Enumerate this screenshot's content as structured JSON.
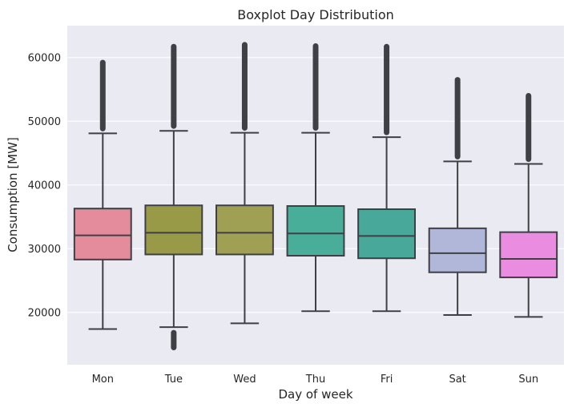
{
  "chart_data": {
    "type": "boxplot",
    "title": "Boxplot Day Distribution",
    "xlabel": "Day of week",
    "ylabel": "Consumption [MW]",
    "ylim": [
      11800,
      65000
    ],
    "yticks": [
      20000,
      30000,
      40000,
      50000,
      60000
    ],
    "yticklabels": [
      "20000",
      "30000",
      "40000",
      "50000",
      "60000"
    ],
    "grid": true,
    "categories": [
      "Mon",
      "Tue",
      "Wed",
      "Thu",
      "Fri",
      "Sat",
      "Sun"
    ],
    "boxes": [
      {
        "category": "Mon",
        "min": 17400,
        "q1": 28300,
        "median": 32100,
        "q3": 36300,
        "max": 48100,
        "outlier_low": null,
        "outlier_high": 59200,
        "color": "#e48c9b"
      },
      {
        "category": "Tue",
        "min": 17700,
        "q1": 29100,
        "median": 32500,
        "q3": 36800,
        "max": 48500,
        "outlier_low": 14500,
        "outlier_high": 61700,
        "color": "#999a48"
      },
      {
        "category": "Wed",
        "min": 18300,
        "q1": 29100,
        "median": 32500,
        "q3": 36800,
        "max": 48200,
        "outlier_low": null,
        "outlier_high": 62000,
        "color": "#a0a054"
      },
      {
        "category": "Thu",
        "min": 20200,
        "q1": 28900,
        "median": 32400,
        "q3": 36700,
        "max": 48200,
        "outlier_low": null,
        "outlier_high": 61800,
        "color": "#48ae9a"
      },
      {
        "category": "Fri",
        "min": 20200,
        "q1": 28500,
        "median": 32000,
        "q3": 36200,
        "max": 47500,
        "outlier_low": null,
        "outlier_high": 61700,
        "color": "#48a89a"
      },
      {
        "category": "Sat",
        "min": 19600,
        "q1": 26300,
        "median": 29300,
        "q3": 33200,
        "max": 43700,
        "outlier_low": null,
        "outlier_high": 56500,
        "color": "#b1b7d8"
      },
      {
        "category": "Sun",
        "min": 19300,
        "q1": 25500,
        "median": 28400,
        "q3": 32600,
        "max": 43300,
        "outlier_low": null,
        "outlier_high": 54000,
        "color": "#ea8ce0"
      }
    ],
    "colors": {
      "plot_background": "#eaeaf2",
      "grid": "#ffffff",
      "line": "#3f3f46"
    }
  }
}
